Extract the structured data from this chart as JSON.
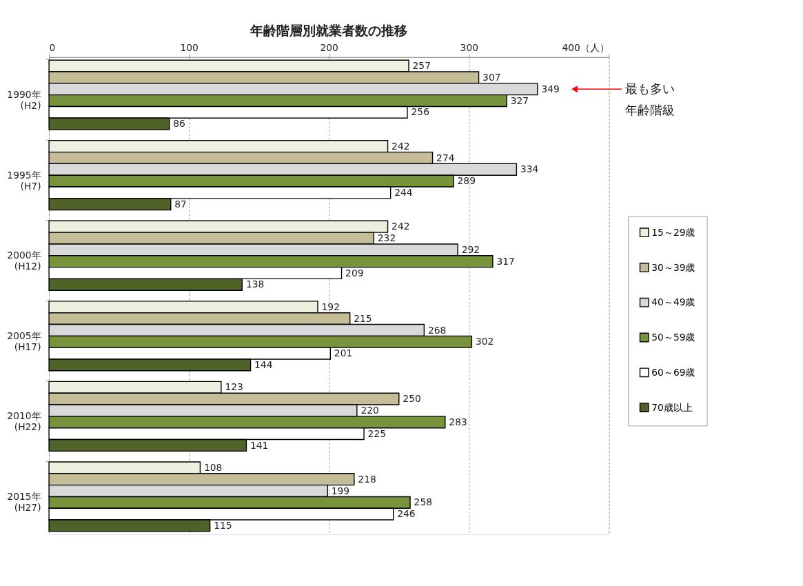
{
  "chart_data": {
    "type": "bar",
    "orientation": "horizontal",
    "title": "年齢階層別就業者数の推移",
    "categories": [
      "1990年\n(H2)",
      "1995年\n(H7)",
      "2000年\n(H12)",
      "2005年\n(H17)",
      "2010年\n(H22)",
      "2015年\n(H27)"
    ],
    "series": [
      {
        "name": "15～29歳",
        "color": "#ebf1de",
        "values": [
          257,
          242,
          242,
          192,
          123,
          108
        ]
      },
      {
        "name": "30～39歳",
        "color": "#c4bd97",
        "values": [
          307,
          274,
          232,
          215,
          250,
          218
        ]
      },
      {
        "name": "40～49歳",
        "color": "#d9d9d9",
        "values": [
          349,
          334,
          292,
          268,
          220,
          199
        ]
      },
      {
        "name": "50～59歳",
        "color": "#77933c",
        "values": [
          327,
          289,
          317,
          302,
          283,
          258
        ]
      },
      {
        "name": "60～69歳",
        "color": "#ffffff",
        "values": [
          256,
          244,
          209,
          201,
          225,
          246
        ]
      },
      {
        "name": "70歳以上",
        "color": "#4f6228",
        "values": [
          86,
          87,
          138,
          144,
          141,
          115
        ]
      }
    ],
    "xlim": [
      0,
      400
    ],
    "xticks": [
      0,
      100,
      200,
      300,
      {
        "value": 400,
        "label": "400（人）"
      }
    ],
    "grid": "x",
    "legend": "right",
    "data_labels": true,
    "annotations": [
      "最も多い年齢階級"
    ]
  }
}
